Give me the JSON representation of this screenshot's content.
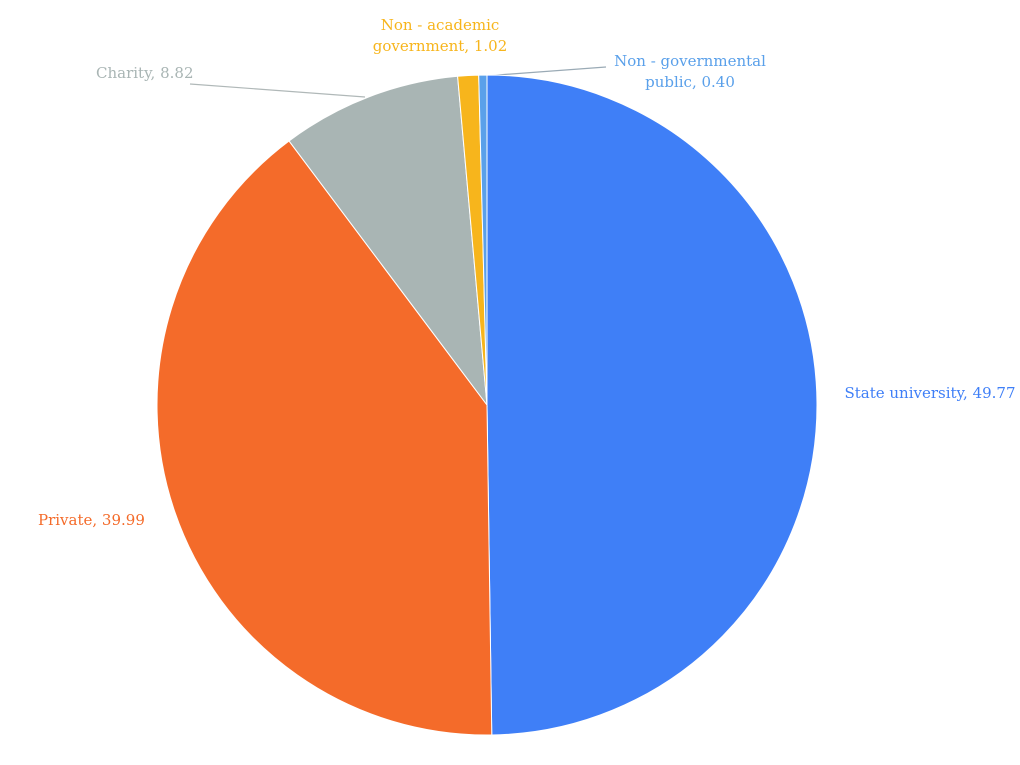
{
  "chart_data": {
    "type": "pie",
    "values": [
      49.77,
      39.99,
      8.82,
      1.02,
      0.4
    ],
    "value_labels": [
      "State university, 49.77",
      "Private, 39.99",
      "Charity, 8.82",
      "Non - academic government, 1.02",
      "Non - governmental public, 0.40"
    ],
    "colors": [
      "#3f7ff7",
      "#f46b2a",
      "#a9b5b4",
      "#f7b51c",
      "#5aa0ea"
    ]
  }
}
